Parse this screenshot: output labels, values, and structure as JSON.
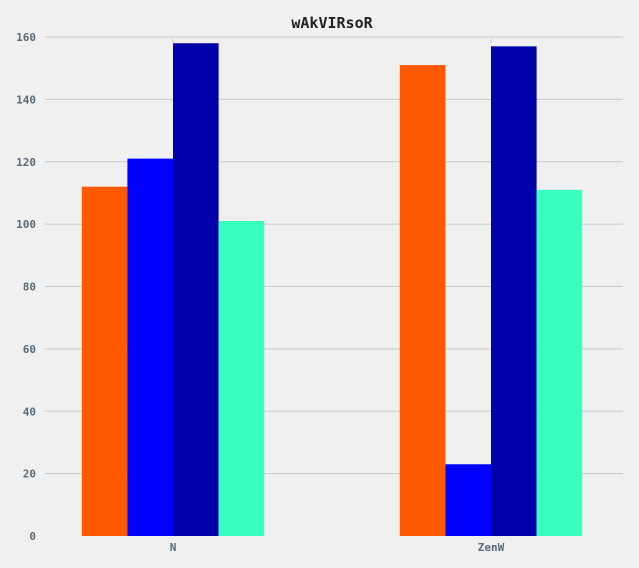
{
  "chart_data": {
    "type": "bar",
    "title": "wAkVIRsoR",
    "xlabel": "",
    "ylabel": "",
    "categories": [
      "N",
      "ZenW"
    ],
    "ylim": [
      0,
      160
    ],
    "yticks": [
      0,
      20,
      40,
      60,
      80,
      100,
      120,
      140,
      160
    ],
    "grid": true,
    "legend": "none",
    "series": [
      {
        "color": "#ff5a00",
        "values": [
          112,
          151
        ]
      },
      {
        "color": "#0000ff",
        "values": [
          121,
          23
        ]
      },
      {
        "color": "#0000aa",
        "values": [
          158,
          157
        ]
      },
      {
        "color": "#38ffc0",
        "values": [
          101,
          111
        ]
      }
    ]
  }
}
